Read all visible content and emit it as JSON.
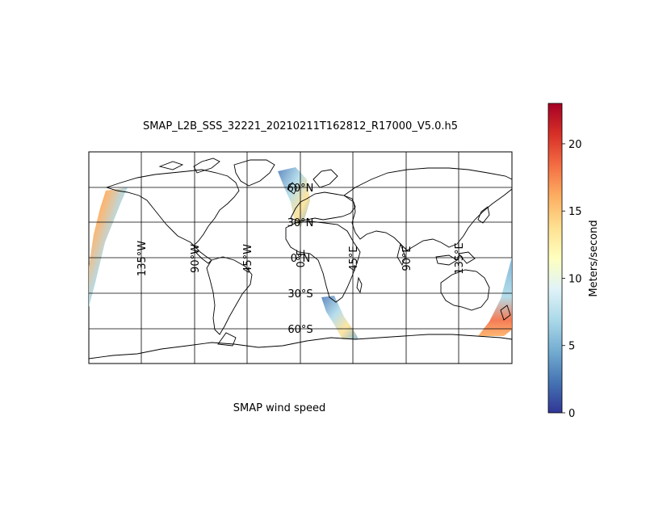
{
  "title": "SMAP_L2B_SSS_32221_20210211T162812_R17000_V5.0.h5",
  "caption": "SMAP wind speed",
  "colorbar": {
    "label": "Meters/second",
    "ticks": [
      0,
      5,
      10,
      15,
      20
    ],
    "range": [
      0,
      23
    ]
  },
  "grid": {
    "lon_labels": [
      "135°W",
      "90°W",
      "45°W",
      "0°E",
      "45°E",
      "90°E",
      "135°E"
    ],
    "lat_labels": [
      "60°N",
      "30°N",
      "0°N",
      "30°S",
      "60°S"
    ]
  },
  "colors": {
    "low": "#313695",
    "mid": "#ffffbf",
    "high": "#a50026"
  }
}
